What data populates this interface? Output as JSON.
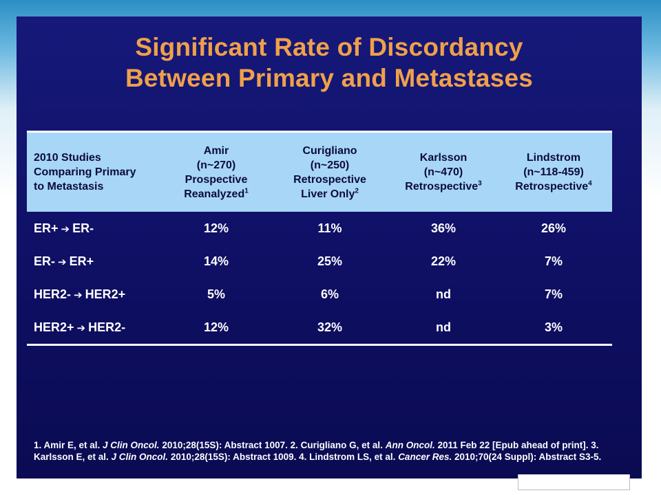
{
  "title": {
    "line1": "Significant Rate of Discordancy",
    "line2": "Between Primary and Metastases"
  },
  "table": {
    "header": {
      "first": [
        "2010 Studies",
        "Comparing Primary",
        "to Metastasis"
      ],
      "columns": [
        {
          "lines": [
            "Amir",
            "(n~270)",
            "Prospective",
            "Reanalyzed"
          ],
          "sup": "1"
        },
        {
          "lines": [
            "Curigliano",
            "(n~250)",
            "Retrospective",
            "Liver Only"
          ],
          "sup": "2"
        },
        {
          "lines": [
            "Karlsson",
            "(n~470)",
            "Retrospective"
          ],
          "sup": "3"
        },
        {
          "lines": [
            "Lindstrom",
            "(n~118-459)",
            "Retrospective"
          ],
          "sup": "4"
        }
      ]
    },
    "rows": [
      {
        "from": "ER+",
        "to": "ER-",
        "values": [
          "12%",
          "11%",
          "36%",
          "26%"
        ]
      },
      {
        "from": "ER-",
        "to": "ER+",
        "values": [
          "14%",
          "25%",
          "22%",
          "7%"
        ]
      },
      {
        "from": "HER2-",
        "to": "HER2+",
        "values": [
          "5%",
          "6%",
          "nd",
          "7%"
        ]
      },
      {
        "from": "HER2+",
        "to": "HER2-",
        "values": [
          "12%",
          "32%",
          "nd",
          "3%"
        ]
      }
    ],
    "arrow_glyph": "➔"
  },
  "footnote": {
    "p1": "1. Amir E, et al. ",
    "j1": "J Clin Oncol.",
    "p2": " 2010;28(15S): Abstract 1007. 2. Curigliano G, et al.  ",
    "j2": "Ann Oncol.",
    "p3": " 2011 Feb 22 [Epub ahead of print]. 3. Karlsson E, et al. ",
    "j3": "J Clin Oncol.",
    "p4": " 2010;28(15S): Abstract 1009. 4. Lindstrom LS, et al. ",
    "j4": "Cancer Res.",
    "p5": " 2010;70(24 Suppl): Abstract S3-5."
  },
  "colors": {
    "slide_bg": "#0f0f64",
    "title": "#f0a04a",
    "header_bg": "#a8d6f6",
    "text": "#ffffff"
  }
}
